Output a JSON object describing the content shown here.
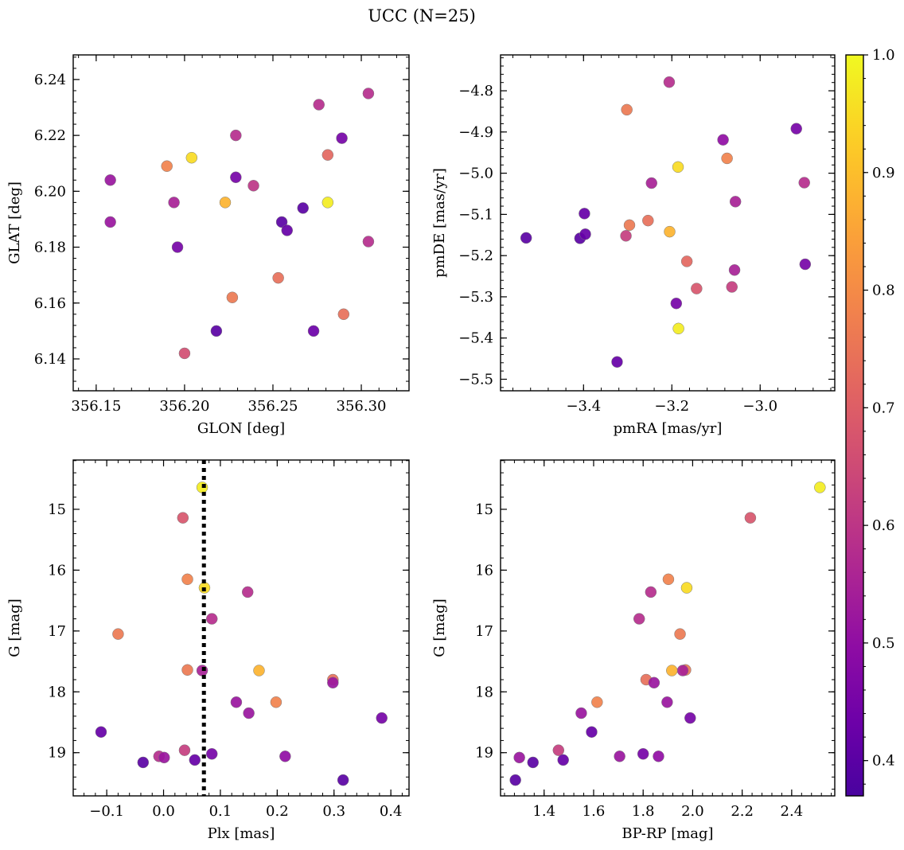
{
  "figure": {
    "suptitle": "UCC (N=25)"
  },
  "colorbar": {
    "ticks": [
      0.4,
      0.5,
      0.6,
      0.7,
      0.8,
      0.9,
      1.0
    ],
    "range": [
      0.37,
      1.0
    ],
    "colormap": "plasma"
  },
  "chart_data": [
    {
      "type": "scatter",
      "xlabel": "GLON [deg]",
      "ylabel": "GLAT [deg]",
      "xlim": [
        356.137,
        356.327
      ],
      "ylim": [
        6.1286,
        6.2488
      ],
      "xticks": [
        356.15,
        356.2,
        356.25,
        356.3
      ],
      "xtick_labels": [
        "356.15",
        "356.20",
        "356.25",
        "356.30"
      ],
      "yticks": [
        6.14,
        6.16,
        6.18,
        6.2,
        6.22,
        6.24
      ],
      "ytick_labels": [
        "6.14",
        "6.16",
        "6.18",
        "6.20",
        "6.22",
        "6.24"
      ],
      "points": [
        {
          "x": 356.158,
          "y": 6.204,
          "c": 0.52
        },
        {
          "x": 356.158,
          "y": 6.189,
          "c": 0.52
        },
        {
          "x": 356.19,
          "y": 6.209,
          "c": 0.78
        },
        {
          "x": 356.194,
          "y": 6.196,
          "c": 0.55
        },
        {
          "x": 356.196,
          "y": 6.18,
          "c": 0.45
        },
        {
          "x": 356.2,
          "y": 6.142,
          "c": 0.66
        },
        {
          "x": 356.204,
          "y": 6.212,
          "c": 0.95
        },
        {
          "x": 356.218,
          "y": 6.15,
          "c": 0.4
        },
        {
          "x": 356.223,
          "y": 6.196,
          "c": 0.88
        },
        {
          "x": 356.227,
          "y": 6.162,
          "c": 0.76
        },
        {
          "x": 356.229,
          "y": 6.22,
          "c": 0.58
        },
        {
          "x": 356.229,
          "y": 6.205,
          "c": 0.45
        },
        {
          "x": 356.239,
          "y": 6.202,
          "c": 0.6
        },
        {
          "x": 356.253,
          "y": 6.169,
          "c": 0.74
        },
        {
          "x": 356.255,
          "y": 6.189,
          "c": 0.4
        },
        {
          "x": 356.258,
          "y": 6.186,
          "c": 0.42
        },
        {
          "x": 356.267,
          "y": 6.194,
          "c": 0.4
        },
        {
          "x": 356.273,
          "y": 6.15,
          "c": 0.43
        },
        {
          "x": 356.276,
          "y": 6.231,
          "c": 0.58
        },
        {
          "x": 356.281,
          "y": 6.196,
          "c": 0.98
        },
        {
          "x": 356.281,
          "y": 6.213,
          "c": 0.72
        },
        {
          "x": 356.289,
          "y": 6.219,
          "c": 0.45
        },
        {
          "x": 356.29,
          "y": 6.156,
          "c": 0.74
        },
        {
          "x": 356.304,
          "y": 6.235,
          "c": 0.58
        },
        {
          "x": 356.304,
          "y": 6.182,
          "c": 0.58
        }
      ]
    },
    {
      "type": "scatter",
      "xlabel": "pmRA [mas/yr]",
      "ylabel": "pmDE [mas/yr]",
      "xlim": [
        -3.588,
        -2.831
      ],
      "ylim": [
        -5.528,
        -4.713
      ],
      "xticks": [
        -3.4,
        -3.2,
        -3.0
      ],
      "xtick_labels": [
        "−3.4",
        "−3.2",
        "−3.0"
      ],
      "yticks": [
        -5.5,
        -5.4,
        -5.3,
        -5.2,
        -5.1,
        -5.0,
        -4.9,
        -4.8
      ],
      "ytick_labels": [
        "−5.5",
        "−5.4",
        "−5.3",
        "−5.2",
        "−5.1",
        "−5.0",
        "−4.9",
        "−4.8"
      ],
      "points": [
        {
          "x": -3.53,
          "y": -5.157,
          "c": 0.4
        },
        {
          "x": -3.408,
          "y": -5.158,
          "c": 0.4
        },
        {
          "x": -3.398,
          "y": -5.098,
          "c": 0.42
        },
        {
          "x": -3.396,
          "y": -5.148,
          "c": 0.42
        },
        {
          "x": -3.324,
          "y": -5.458,
          "c": 0.42
        },
        {
          "x": -3.302,
          "y": -4.846,
          "c": 0.76
        },
        {
          "x": -3.296,
          "y": -5.126,
          "c": 0.76
        },
        {
          "x": -3.304,
          "y": -5.152,
          "c": 0.62
        },
        {
          "x": -3.254,
          "y": -5.115,
          "c": 0.74
        },
        {
          "x": -3.246,
          "y": -5.024,
          "c": 0.55
        },
        {
          "x": -3.206,
          "y": -4.779,
          "c": 0.58
        },
        {
          "x": -3.205,
          "y": -5.142,
          "c": 0.88
        },
        {
          "x": -3.186,
          "y": -4.985,
          "c": 0.95
        },
        {
          "x": -3.185,
          "y": -5.377,
          "c": 0.98
        },
        {
          "x": -3.19,
          "y": -5.316,
          "c": 0.45
        },
        {
          "x": -3.166,
          "y": -5.214,
          "c": 0.72
        },
        {
          "x": -3.144,
          "y": -5.28,
          "c": 0.68
        },
        {
          "x": -3.084,
          "y": -4.919,
          "c": 0.5
        },
        {
          "x": -3.075,
          "y": -4.964,
          "c": 0.78
        },
        {
          "x": -3.064,
          "y": -5.276,
          "c": 0.62
        },
        {
          "x": -3.058,
          "y": -5.235,
          "c": 0.55
        },
        {
          "x": -3.056,
          "y": -5.069,
          "c": 0.55
        },
        {
          "x": -2.918,
          "y": -4.892,
          "c": 0.45
        },
        {
          "x": -2.9,
          "y": -5.023,
          "c": 0.58
        },
        {
          "x": -2.898,
          "y": -5.221,
          "c": 0.45
        }
      ]
    },
    {
      "type": "scatter",
      "xlabel": "Plx [mas]",
      "ylabel": "G [mag]",
      "xlim": [
        -0.159,
        0.432
      ],
      "ylim": [
        19.71,
        14.19
      ],
      "xticks": [
        -0.1,
        0.0,
        0.1,
        0.2,
        0.3,
        0.4
      ],
      "xtick_labels": [
        "−0.1",
        "0.0",
        "0.1",
        "0.2",
        "0.3",
        "0.4"
      ],
      "yticks": [
        15,
        16,
        17,
        18,
        19
      ],
      "ytick_labels": [
        "15",
        "16",
        "17",
        "18",
        "19"
      ],
      "vline": {
        "x": 0.071,
        "style": "dotted"
      },
      "points": [
        {
          "x": 0.068,
          "y": 14.64,
          "c": 0.98
        },
        {
          "x": 0.034,
          "y": 15.14,
          "c": 0.68
        },
        {
          "x": 0.042,
          "y": 16.15,
          "c": 0.78
        },
        {
          "x": 0.072,
          "y": 16.29,
          "c": 0.95
        },
        {
          "x": 0.148,
          "y": 16.36,
          "c": 0.58
        },
        {
          "x": 0.085,
          "y": 16.8,
          "c": 0.58
        },
        {
          "x": -0.08,
          "y": 17.05,
          "c": 0.76
        },
        {
          "x": 0.042,
          "y": 17.64,
          "c": 0.76
        },
        {
          "x": 0.068,
          "y": 17.65,
          "c": 0.55
        },
        {
          "x": 0.168,
          "y": 17.65,
          "c": 0.88
        },
        {
          "x": 0.298,
          "y": 17.8,
          "c": 0.74
        },
        {
          "x": 0.298,
          "y": 17.85,
          "c": 0.52
        },
        {
          "x": 0.128,
          "y": 18.17,
          "c": 0.52
        },
        {
          "x": 0.198,
          "y": 18.17,
          "c": 0.78
        },
        {
          "x": 0.15,
          "y": 18.35,
          "c": 0.52
        },
        {
          "x": 0.384,
          "y": 18.43,
          "c": 0.45
        },
        {
          "x": -0.11,
          "y": 18.66,
          "c": 0.42
        },
        {
          "x": 0.037,
          "y": 18.96,
          "c": 0.62
        },
        {
          "x": 0.085,
          "y": 19.02,
          "c": 0.45
        },
        {
          "x": -0.008,
          "y": 19.06,
          "c": 0.58
        },
        {
          "x": 0.214,
          "y": 19.06,
          "c": 0.5
        },
        {
          "x": 0.001,
          "y": 19.08,
          "c": 0.52
        },
        {
          "x": 0.055,
          "y": 19.12,
          "c": 0.42
        },
        {
          "x": -0.036,
          "y": 19.16,
          "c": 0.4
        },
        {
          "x": 0.316,
          "y": 19.45,
          "c": 0.4
        }
      ]
    },
    {
      "type": "scatter",
      "xlabel": "BP-RP [mag]",
      "ylabel": "G [mag]",
      "xlim": [
        1.224,
        2.574
      ],
      "ylim": [
        19.71,
        14.19
      ],
      "xticks": [
        1.4,
        1.6,
        1.8,
        2.0,
        2.2,
        2.4
      ],
      "xtick_labels": [
        "1.4",
        "1.6",
        "1.8",
        "2.0",
        "2.2",
        "2.4"
      ],
      "yticks": [
        15,
        16,
        17,
        18,
        19
      ],
      "ytick_labels": [
        "15",
        "16",
        "17",
        "18",
        "19"
      ],
      "points": [
        {
          "x": 2.514,
          "y": 14.64,
          "c": 0.98
        },
        {
          "x": 2.233,
          "y": 15.14,
          "c": 0.68
        },
        {
          "x": 1.902,
          "y": 16.15,
          "c": 0.78
        },
        {
          "x": 1.976,
          "y": 16.29,
          "c": 0.95
        },
        {
          "x": 1.831,
          "y": 16.36,
          "c": 0.58
        },
        {
          "x": 1.784,
          "y": 16.8,
          "c": 0.58
        },
        {
          "x": 1.949,
          "y": 17.05,
          "c": 0.76
        },
        {
          "x": 1.971,
          "y": 17.64,
          "c": 0.76
        },
        {
          "x": 1.96,
          "y": 17.65,
          "c": 0.55
        },
        {
          "x": 1.916,
          "y": 17.65,
          "c": 0.88
        },
        {
          "x": 1.812,
          "y": 17.8,
          "c": 0.74
        },
        {
          "x": 1.844,
          "y": 17.85,
          "c": 0.52
        },
        {
          "x": 1.897,
          "y": 18.17,
          "c": 0.52
        },
        {
          "x": 1.614,
          "y": 18.17,
          "c": 0.78
        },
        {
          "x": 1.55,
          "y": 18.35,
          "c": 0.52
        },
        {
          "x": 1.99,
          "y": 18.43,
          "c": 0.45
        },
        {
          "x": 1.592,
          "y": 18.66,
          "c": 0.42
        },
        {
          "x": 1.458,
          "y": 18.96,
          "c": 0.62
        },
        {
          "x": 1.8,
          "y": 19.02,
          "c": 0.45
        },
        {
          "x": 1.862,
          "y": 19.06,
          "c": 0.5
        },
        {
          "x": 1.705,
          "y": 19.06,
          "c": 0.52
        },
        {
          "x": 1.3,
          "y": 19.08,
          "c": 0.52
        },
        {
          "x": 1.477,
          "y": 19.12,
          "c": 0.42
        },
        {
          "x": 1.355,
          "y": 19.16,
          "c": 0.4
        },
        {
          "x": 1.284,
          "y": 19.45,
          "c": 0.4
        }
      ]
    }
  ]
}
